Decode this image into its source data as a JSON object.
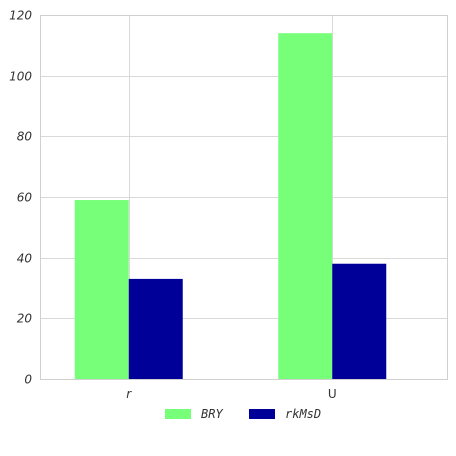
{
  "chart_data": {
    "type": "bar",
    "categories": [
      "r",
      "U"
    ],
    "series": [
      {
        "name": "BRY",
        "values": [
          59,
          114
        ],
        "color": "#77ff7a"
      },
      {
        "name": "rkMsD",
        "values": [
          33,
          38
        ],
        "color": "#000099"
      }
    ],
    "title": "",
    "xlabel": "",
    "ylabel": "",
    "ylim": [
      0,
      120
    ],
    "yticks": [
      0,
      20,
      40,
      60,
      80,
      100,
      120
    ],
    "grid": true,
    "legend_position": "bottom-center"
  }
}
